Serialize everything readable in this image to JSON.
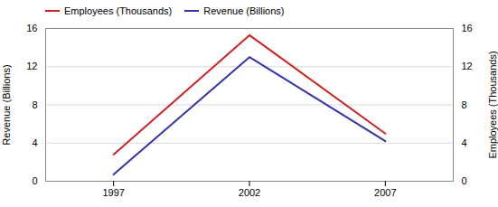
{
  "chart_data": {
    "type": "line",
    "x": [
      1997,
      2002,
      2007
    ],
    "series": [
      {
        "name": "Employees (Thousands)",
        "color": "#CC2222",
        "values": [
          2.8,
          15.3,
          5.0
        ]
      },
      {
        "name": "Revenue (Billions)",
        "color": "#3333AA",
        "values": [
          0.7,
          13.0,
          4.2
        ]
      }
    ],
    "xlim": [
      1994.5,
      2009.5
    ],
    "xticks": [
      1997,
      2002,
      2007
    ],
    "ylim": [
      0,
      16
    ],
    "yticks": [
      0,
      4,
      8,
      12,
      16
    ],
    "ylabel": "Revenue (Billions)",
    "y2lim": [
      0,
      16
    ],
    "y2ticks": [
      0,
      4,
      8,
      12,
      16
    ],
    "y2label": "Employees (Thousands)",
    "grid": true,
    "legend": "upper left"
  }
}
